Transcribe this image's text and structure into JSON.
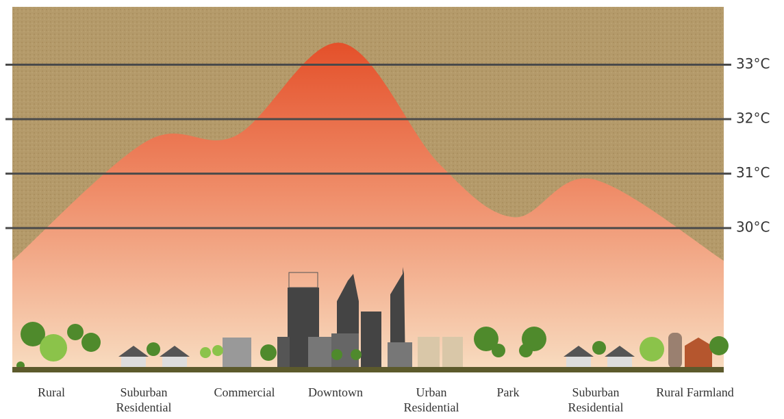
{
  "chart_data": {
    "type": "area",
    "categories": [
      "Rural",
      "Suburban Residential",
      "Commercial",
      "Downtown",
      "Urban Residential",
      "Park",
      "Suburban Residential",
      "Rural Farmland"
    ],
    "values": [
      29.4,
      31.6,
      31.7,
      33.4,
      31.2,
      30.2,
      30.9,
      29.4
    ],
    "ylim": [
      27.4,
      34.1
    ],
    "yticks": [
      {
        "value": 30,
        "label": "30°C"
      },
      {
        "value": 31,
        "label": "31°C"
      },
      {
        "value": 32,
        "label": "32°C"
      },
      {
        "value": 33,
        "label": "33°C"
      }
    ],
    "grid": true,
    "color": "#e4552a"
  }
}
